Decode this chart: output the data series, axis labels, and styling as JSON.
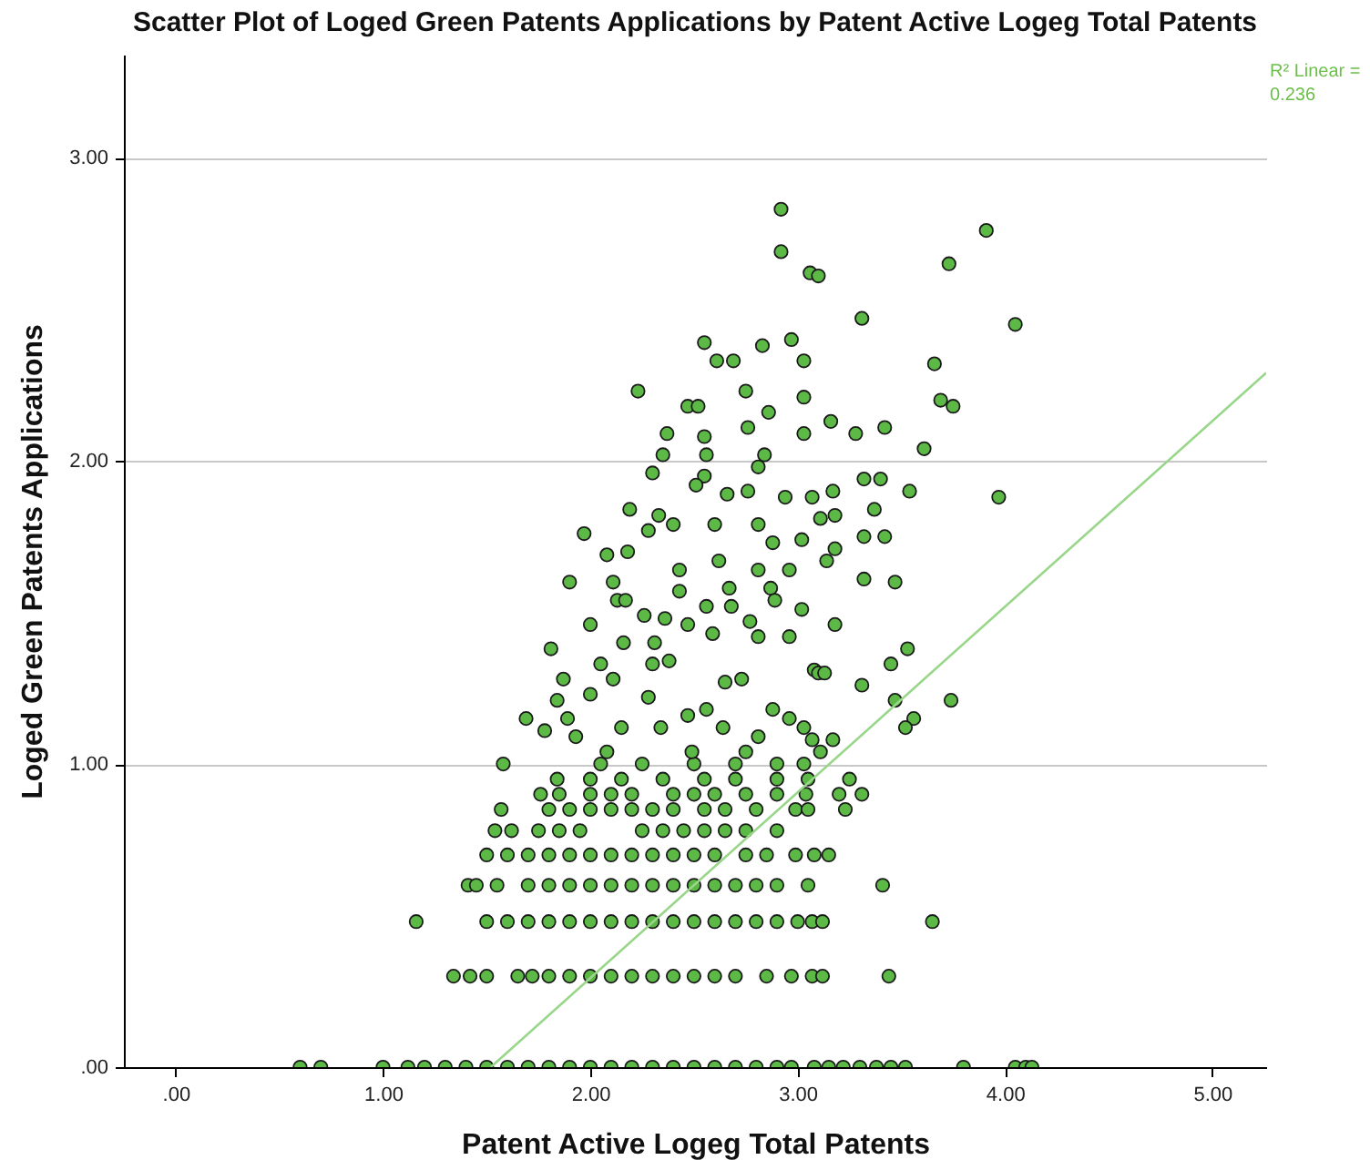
{
  "chart_data": {
    "type": "scatter",
    "title": "Scatter Plot of Loged Green Patents Applications by Patent Active Logeg Total Patents",
    "xlabel": "Patent Active Logeg Total Patents",
    "ylabel": "Loged Green Patents Applications",
    "annotations": [
      "R² Linear = 0.236"
    ],
    "xlim": [
      -0.25,
      5.26
    ],
    "ylim": [
      0,
      3.34
    ],
    "xticks": [
      {
        "value": 0,
        "label": ".00"
      },
      {
        "value": 1,
        "label": "1.00"
      },
      {
        "value": 2,
        "label": "2.00"
      },
      {
        "value": 3,
        "label": "3.00"
      },
      {
        "value": 4,
        "label": "4.00"
      },
      {
        "value": 5,
        "label": "5.00"
      }
    ],
    "yticks": [
      {
        "value": 0,
        "label": ".00"
      },
      {
        "value": 1,
        "label": "1.00"
      },
      {
        "value": 2,
        "label": "2.00"
      },
      {
        "value": 3,
        "label": "3.00"
      }
    ],
    "grid": "y",
    "series": [
      {
        "marker": "circle",
        "color": "#5cb946",
        "x": [
          0.6,
          0.7,
          1.0,
          1.12,
          1.2,
          1.3,
          1.4,
          1.5,
          1.6,
          1.7,
          1.8,
          1.9,
          2.0,
          2.1,
          2.2,
          2.3,
          2.4,
          2.5,
          2.6,
          2.7,
          2.8,
          2.9,
          2.97,
          3.08,
          3.15,
          3.22,
          3.3,
          3.38,
          3.45,
          3.52,
          3.8,
          4.05,
          4.1,
          4.13,
          1.34,
          1.42,
          1.5,
          1.65,
          1.72,
          1.8,
          1.9,
          2.0,
          2.1,
          2.2,
          2.3,
          2.4,
          2.5,
          2.6,
          2.7,
          2.85,
          2.97,
          3.07,
          3.12,
          3.44,
          1.16,
          1.5,
          1.6,
          1.7,
          1.8,
          1.9,
          2.0,
          2.1,
          2.2,
          2.3,
          2.4,
          2.5,
          2.6,
          2.7,
          2.8,
          2.9,
          3.0,
          3.07,
          3.12,
          3.65,
          1.41,
          1.45,
          1.55,
          1.7,
          1.8,
          1.9,
          2.0,
          2.1,
          2.2,
          2.3,
          2.4,
          2.5,
          2.6,
          2.7,
          2.8,
          2.9,
          3.05,
          3.41,
          1.5,
          1.6,
          1.7,
          1.8,
          1.9,
          2.0,
          2.1,
          2.2,
          2.3,
          2.4,
          2.5,
          2.6,
          2.75,
          2.85,
          2.99,
          3.08,
          3.15,
          1.54,
          1.62,
          1.75,
          1.85,
          1.95,
          2.25,
          2.35,
          2.45,
          2.55,
          2.65,
          2.75,
          2.9,
          1.57,
          1.8,
          1.9,
          2.0,
          2.1,
          2.2,
          2.3,
          2.4,
          2.55,
          2.65,
          2.8,
          2.99,
          3.05,
          3.23,
          1.76,
          1.85,
          2.0,
          2.1,
          2.2,
          2.4,
          2.5,
          2.6,
          2.75,
          2.9,
          3.04,
          3.2,
          3.31,
          1.84,
          2.0,
          2.15,
          2.35,
          2.55,
          2.7,
          2.9,
          3.05,
          3.25,
          1.58,
          2.05,
          2.25,
          2.5,
          2.7,
          2.9,
          3.03,
          2.92,
          2.92,
          3.06,
          2.55,
          2.61,
          2.69,
          2.83,
          2.97,
          3.03,
          2.23,
          2.47,
          2.52,
          2.75,
          2.86,
          3.03,
          2.37,
          2.55,
          2.76,
          3.03,
          2.35,
          2.56,
          2.84,
          2.3,
          2.81,
          2.55,
          2.51,
          2.66,
          2.76,
          2.94,
          3.07,
          2.19,
          2.33,
          1.97,
          2.28,
          2.4,
          2.6,
          2.81,
          2.08,
          2.18,
          2.62,
          2.88,
          3.02,
          1.9,
          2.11,
          2.43,
          2.81,
          2.96,
          2.13,
          2.17,
          2.43,
          2.67,
          2.56,
          2.68,
          2.87,
          2.89,
          3.02,
          2.0,
          2.26,
          2.36,
          2.47,
          2.77,
          1.81,
          2.16,
          2.31,
          2.59,
          2.81,
          2.96,
          1.69,
          1.78,
          1.84,
          1.87,
          1.89,
          2.0,
          2.05,
          2.11,
          2.3,
          2.38,
          2.28,
          2.47,
          2.56,
          2.65,
          2.73,
          2.88,
          2.96,
          3.08,
          2.15,
          2.34,
          2.64,
          1.93,
          2.81,
          3.03,
          2.75,
          2.08,
          2.49,
          3.91,
          3.73,
          3.1,
          3.31,
          4.05,
          3.66,
          3.69,
          3.75,
          3.16,
          3.28,
          3.42,
          3.61,
          3.32,
          3.4,
          3.54,
          3.97,
          3.17,
          3.11,
          3.18,
          3.37,
          3.32,
          3.42,
          3.18,
          3.14,
          3.32,
          3.47,
          3.18,
          3.53,
          3.45,
          3.1,
          3.13,
          3.31,
          3.74,
          3.47,
          3.56,
          3.52,
          3.07,
          3.17,
          3.11
        ],
        "values": [
          0,
          0,
          0,
          0,
          0,
          0,
          0,
          0,
          0,
          0,
          0,
          0,
          0,
          0,
          0,
          0,
          0,
          0,
          0,
          0,
          0,
          0,
          0,
          0,
          0,
          0,
          0,
          0,
          0,
          0,
          0,
          0,
          0,
          0,
          0.3,
          0.3,
          0.3,
          0.3,
          0.3,
          0.3,
          0.3,
          0.3,
          0.3,
          0.3,
          0.3,
          0.3,
          0.3,
          0.3,
          0.3,
          0.3,
          0.3,
          0.3,
          0.3,
          0.3,
          0.48,
          0.48,
          0.48,
          0.48,
          0.48,
          0.48,
          0.48,
          0.48,
          0.48,
          0.48,
          0.48,
          0.48,
          0.48,
          0.48,
          0.48,
          0.48,
          0.48,
          0.48,
          0.48,
          0.48,
          0.6,
          0.6,
          0.6,
          0.6,
          0.6,
          0.6,
          0.6,
          0.6,
          0.6,
          0.6,
          0.6,
          0.6,
          0.6,
          0.6,
          0.6,
          0.6,
          0.6,
          0.6,
          0.7,
          0.7,
          0.7,
          0.7,
          0.7,
          0.7,
          0.7,
          0.7,
          0.7,
          0.7,
          0.7,
          0.7,
          0.7,
          0.7,
          0.7,
          0.7,
          0.7,
          0.78,
          0.78,
          0.78,
          0.78,
          0.78,
          0.78,
          0.78,
          0.78,
          0.78,
          0.78,
          0.78,
          0.78,
          0.85,
          0.85,
          0.85,
          0.85,
          0.85,
          0.85,
          0.85,
          0.85,
          0.85,
          0.85,
          0.85,
          0.85,
          0.85,
          0.85,
          0.9,
          0.9,
          0.9,
          0.9,
          0.9,
          0.9,
          0.9,
          0.9,
          0.9,
          0.9,
          0.9,
          0.9,
          0.9,
          0.95,
          0.95,
          0.95,
          0.95,
          0.95,
          0.95,
          0.95,
          0.95,
          0.95,
          1.0,
          1.0,
          1.0,
          1.0,
          1.0,
          1.0,
          1.0,
          2.83,
          2.69,
          2.62,
          2.39,
          2.33,
          2.33,
          2.38,
          2.4,
          2.33,
          2.23,
          2.18,
          2.18,
          2.23,
          2.16,
          2.21,
          2.09,
          2.08,
          2.11,
          2.09,
          2.02,
          2.02,
          2.02,
          1.96,
          1.98,
          1.95,
          1.92,
          1.89,
          1.9,
          1.88,
          1.88,
          1.84,
          1.82,
          1.76,
          1.77,
          1.79,
          1.79,
          1.79,
          1.69,
          1.7,
          1.67,
          1.73,
          1.74,
          1.6,
          1.6,
          1.64,
          1.64,
          1.64,
          1.54,
          1.54,
          1.57,
          1.58,
          1.52,
          1.52,
          1.58,
          1.54,
          1.51,
          1.46,
          1.49,
          1.48,
          1.46,
          1.47,
          1.38,
          1.4,
          1.4,
          1.43,
          1.42,
          1.42,
          1.15,
          1.11,
          1.21,
          1.28,
          1.15,
          1.23,
          1.33,
          1.28,
          1.33,
          1.34,
          1.22,
          1.16,
          1.18,
          1.27,
          1.28,
          1.18,
          1.15,
          1.31,
          1.12,
          1.12,
          1.12,
          1.09,
          1.09,
          1.12,
          1.04,
          1.04,
          1.04,
          2.76,
          2.65,
          2.61,
          2.47,
          2.45,
          2.32,
          2.2,
          2.18,
          2.13,
          2.09,
          2.11,
          2.04,
          1.94,
          1.94,
          1.9,
          1.88,
          1.9,
          1.81,
          1.82,
          1.84,
          1.75,
          1.75,
          1.71,
          1.67,
          1.61,
          1.6,
          1.46,
          1.38,
          1.33,
          1.3,
          1.3,
          1.26,
          1.21,
          1.21,
          1.15,
          1.12,
          1.08,
          1.08,
          1.04
        ]
      },
      {
        "type": "line",
        "color": "#99d68a",
        "x": [
          1.52,
          5.26
        ],
        "values": [
          0,
          2.29
        ]
      }
    ]
  }
}
